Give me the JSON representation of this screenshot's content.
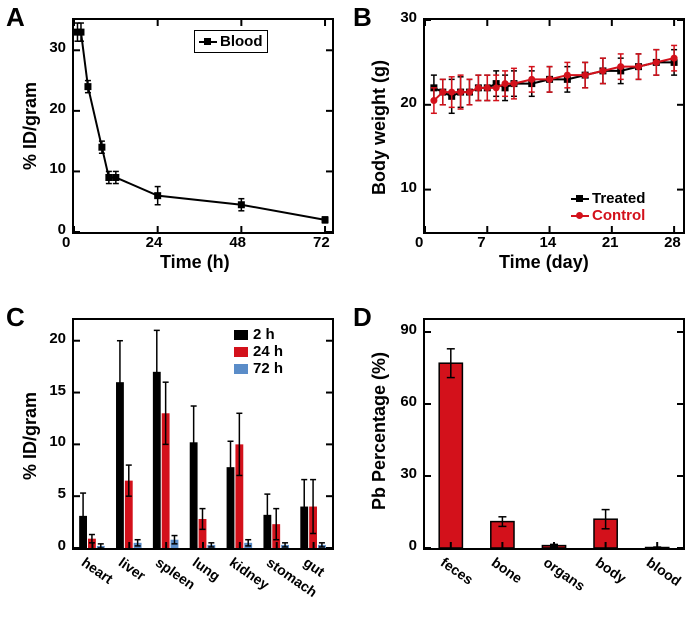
{
  "panelA": {
    "label": "A",
    "type": "line",
    "x_label": "Time (h)",
    "y_label": "% ID/gram",
    "xlim": [
      0,
      74
    ],
    "ylim": [
      0,
      35
    ],
    "xticks": [
      0,
      24,
      48,
      72
    ],
    "yticks": [
      0,
      10,
      20,
      30
    ],
    "series": {
      "name": "Blood",
      "color": "#000000",
      "marker": "square",
      "x": [
        1,
        2,
        4,
        8,
        10,
        12,
        24,
        48,
        72
      ],
      "y": [
        33,
        33,
        24,
        14,
        9,
        9,
        6,
        4.5,
        2
      ],
      "yerr": [
        1.5,
        1.5,
        1,
        1,
        1,
        1,
        1.5,
        1,
        0.5
      ]
    },
    "axis_fontsize": 18,
    "tick_fontsize": 15
  },
  "panelB": {
    "label": "B",
    "type": "line",
    "x_label": "Time (day)",
    "y_label": "Body weight (g)",
    "xlim": [
      0,
      29
    ],
    "ylim": [
      5,
      30
    ],
    "xticks": [
      0,
      7,
      14,
      21,
      28
    ],
    "yticks": [
      10,
      20,
      30
    ],
    "series": [
      {
        "name": "Treated",
        "color": "#000000",
        "marker": "square",
        "x": [
          1,
          2,
          3,
          4,
          5,
          6,
          7,
          8,
          9,
          10,
          12,
          14,
          16,
          18,
          20,
          22,
          24,
          26,
          28
        ],
        "y": [
          22,
          21.5,
          21,
          21.5,
          21.5,
          22,
          22,
          22.5,
          22,
          22.5,
          22.5,
          23,
          23,
          23.5,
          24,
          24,
          24.5,
          25,
          25
        ],
        "yerr": [
          1.5,
          1.5,
          2,
          1.8,
          1.5,
          1.5,
          1.5,
          1.5,
          1.5,
          1.5,
          1.5,
          1.5,
          1.5,
          1.5,
          1.5,
          1.5,
          1.5,
          1.5,
          1.5
        ]
      },
      {
        "name": "Control",
        "color": "#d3111b",
        "marker": "circle",
        "x": [
          1,
          2,
          3,
          4,
          5,
          6,
          7,
          8,
          9,
          10,
          12,
          14,
          16,
          18,
          20,
          22,
          24,
          26,
          28
        ],
        "y": [
          20.5,
          21.5,
          21.5,
          21.5,
          21.5,
          22,
          22,
          22,
          22.5,
          22.5,
          23,
          23,
          23.5,
          23.5,
          24,
          24.5,
          24.5,
          25,
          25.5
        ],
        "yerr": [
          1.5,
          1.5,
          1.8,
          2,
          1.5,
          1.5,
          1.5,
          1.5,
          1.5,
          1.8,
          1.5,
          1.5,
          1.5,
          1.5,
          1.5,
          1.5,
          1.5,
          1.5,
          1.5
        ]
      }
    ],
    "axis_fontsize": 18,
    "tick_fontsize": 15
  },
  "panelC": {
    "label": "C",
    "type": "bar",
    "x_label": "",
    "y_label": "% ID/gram",
    "categories": [
      "heart",
      "liver",
      "spleen",
      "lung",
      "kidney",
      "stomach",
      "gut"
    ],
    "ylim": [
      0,
      22
    ],
    "yticks": [
      0,
      5,
      10,
      15,
      20
    ],
    "series": [
      {
        "name": "2 h",
        "color": "#000000",
        "values": [
          3.1,
          16,
          17,
          10.2,
          7.8,
          3.2,
          4
        ],
        "err": [
          2.2,
          4,
          4,
          3.5,
          2.5,
          2,
          2.6
        ]
      },
      {
        "name": "24 h",
        "color": "#d3111b",
        "values": [
          0.9,
          6.5,
          13,
          2.8,
          10,
          2.3,
          4
        ],
        "err": [
          0.4,
          1.5,
          3,
          1,
          3,
          1.5,
          2.6
        ]
      },
      {
        "name": "72 h",
        "color": "#5a8cc8",
        "values": [
          0.2,
          0.5,
          0.8,
          0.3,
          0.5,
          0.3,
          0.3
        ],
        "err": [
          0.2,
          0.3,
          0.4,
          0.2,
          0.3,
          0.2,
          0.2
        ]
      }
    ],
    "axis_fontsize": 18,
    "tick_fontsize": 14,
    "bar_group_width": 0.72
  },
  "panelD": {
    "label": "D",
    "type": "bar",
    "x_label": "",
    "y_label": "Pb Percentage (%)",
    "categories": [
      "feces",
      "bone",
      "organs",
      "body",
      "blood"
    ],
    "ylim": [
      0,
      95
    ],
    "yticks": [
      0,
      30,
      60,
      90
    ],
    "series": [
      {
        "name": "",
        "color": "#d3111b",
        "stroke": "#000000",
        "values": [
          77,
          11,
          1,
          12,
          0.2
        ],
        "err": [
          6,
          2,
          0.5,
          4,
          0.2
        ]
      }
    ],
    "bar_width": 0.45,
    "axis_fontsize": 18,
    "tick_fontsize": 14
  },
  "colors": {
    "background": "#ffffff",
    "axis": "#000000",
    "black": "#000000",
    "red": "#d3111b",
    "blue": "#5a8cc8"
  }
}
